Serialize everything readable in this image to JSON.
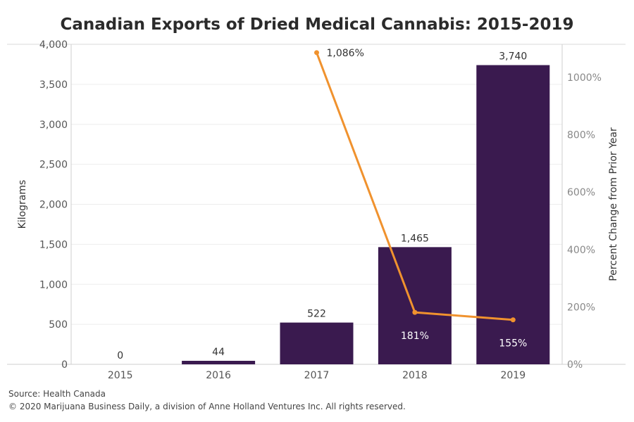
{
  "chart_data": {
    "type": "bar",
    "title": "Canadian Exports of Dried Medical Cannabis: 2015-2019",
    "categories": [
      "2015",
      "2016",
      "2017",
      "2018",
      "2019"
    ],
    "ylabel": "Kilograms",
    "y2label": "Percent Change from Prior Year",
    "ylim": [
      0,
      4000
    ],
    "y2lim": [
      0,
      1115
    ],
    "yticks": [
      0,
      500,
      1000,
      1500,
      2000,
      2500,
      3000,
      3500,
      4000
    ],
    "ytick_labels": [
      "0",
      "500",
      "1,000",
      "1,500",
      "2,000",
      "2,500",
      "3,000",
      "3,500",
      "4,000"
    ],
    "y2ticks": [
      0,
      200,
      400,
      600,
      800,
      1000
    ],
    "y2tick_labels": [
      "0%",
      "200%",
      "400%",
      "600%",
      "800%",
      "1000%"
    ],
    "grid": true,
    "series": [
      {
        "type": "bar",
        "values": [
          0,
          44,
          522,
          1465,
          3740
        ],
        "labels": [
          "0",
          "44",
          "522",
          "1,465",
          "3,740"
        ],
        "color": "#3a1a4f"
      },
      {
        "type": "line",
        "axis": "right",
        "values": [
          null,
          null,
          1086,
          181,
          155
        ],
        "labels": [
          "",
          "",
          "1,086%",
          "181%",
          "155%"
        ],
        "color": "#f0922e"
      }
    ]
  },
  "footer": {
    "source": "Source: Health Canada",
    "copyright": "© 2020 Marijuana Business Daily, a division of Anne Holland Ventures Inc. All rights reserved."
  }
}
